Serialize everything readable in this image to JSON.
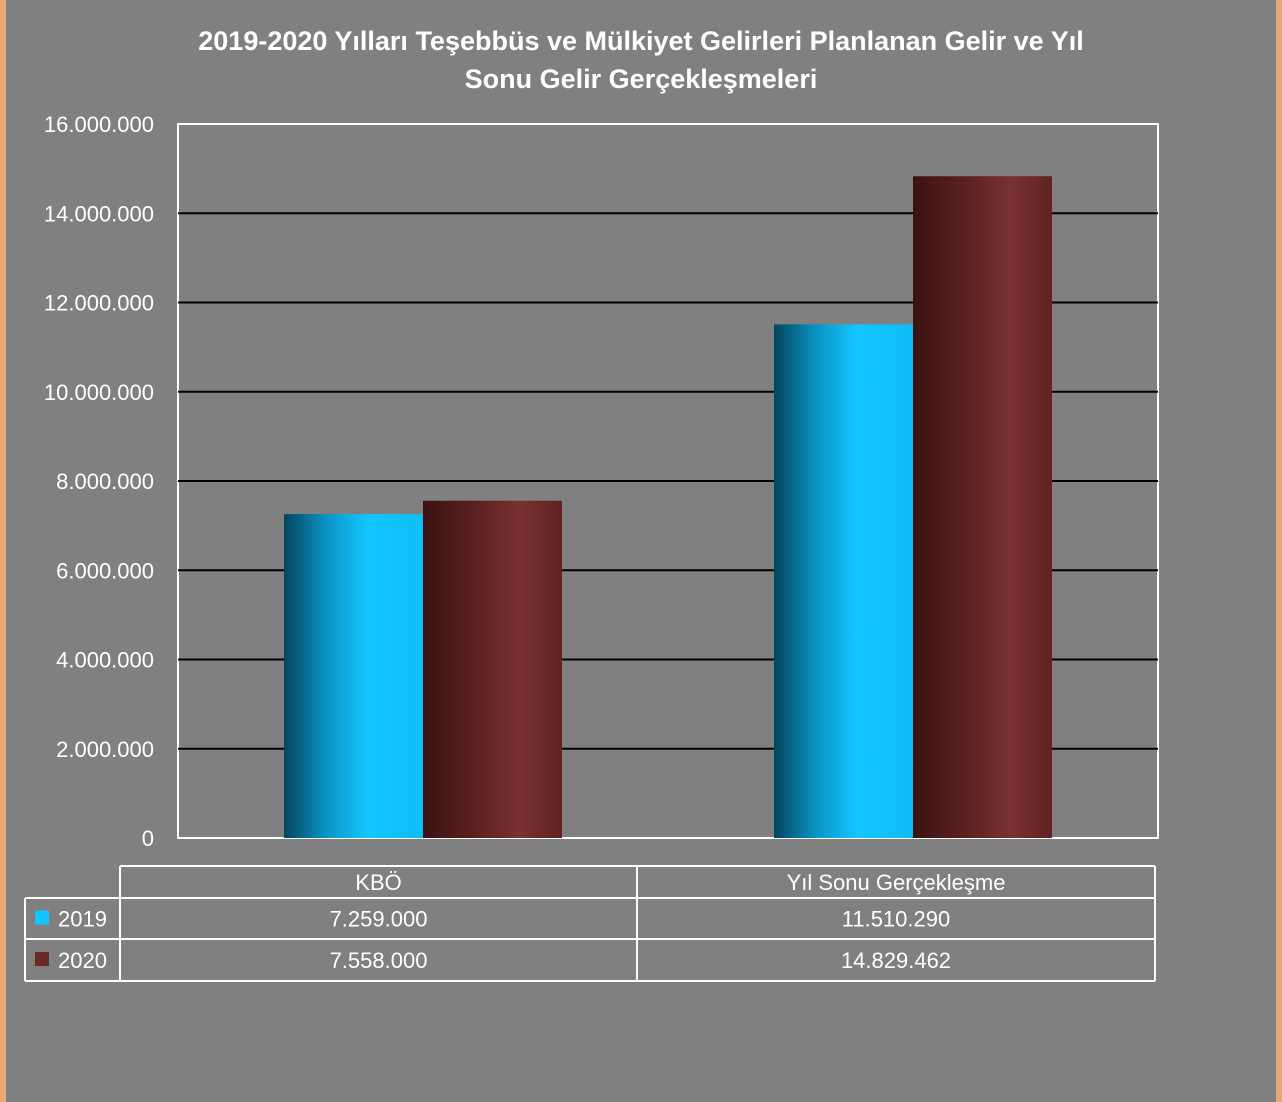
{
  "chart_data": {
    "type": "bar",
    "title": "2019-2020 Yılları Teşebbüs ve Mülkiyet Gelirleri Planlanan  Gelir ve Yıl\nSonu Gelir Gerçekleşmeleri",
    "categories": [
      "KBÖ",
      "Yıl Sonu Gerçekleşme"
    ],
    "series": [
      {
        "name": "2019",
        "values": [
          7259000,
          11510290
        ],
        "color": "#12c4ff"
      },
      {
        "name": "2020",
        "values": [
          7558000,
          14829462
        ],
        "color": "#6e2828"
      }
    ],
    "ylim": [
      0,
      16000000
    ],
    "yticks": [
      0,
      2000000,
      4000000,
      6000000,
      8000000,
      10000000,
      12000000,
      14000000,
      16000000
    ],
    "ytick_labels": [
      "0",
      "2.000.000",
      "4.000.000",
      "6.000.000",
      "8.000.000",
      "10.000.000",
      "12.000.000",
      "14.000.000",
      "16.000.000"
    ],
    "grid": true,
    "legend": "data-table",
    "data_table": {
      "rows": [
        {
          "series": "2019",
          "cells": [
            "7.259.000",
            "11.510.290"
          ]
        },
        {
          "series": "2020",
          "cells": [
            "7.558.000",
            "14.829.462"
          ]
        }
      ]
    },
    "colors": {
      "background": "#808080",
      "outer": "#e9a873",
      "gridline": "#000000",
      "text": "#ffffff"
    }
  }
}
